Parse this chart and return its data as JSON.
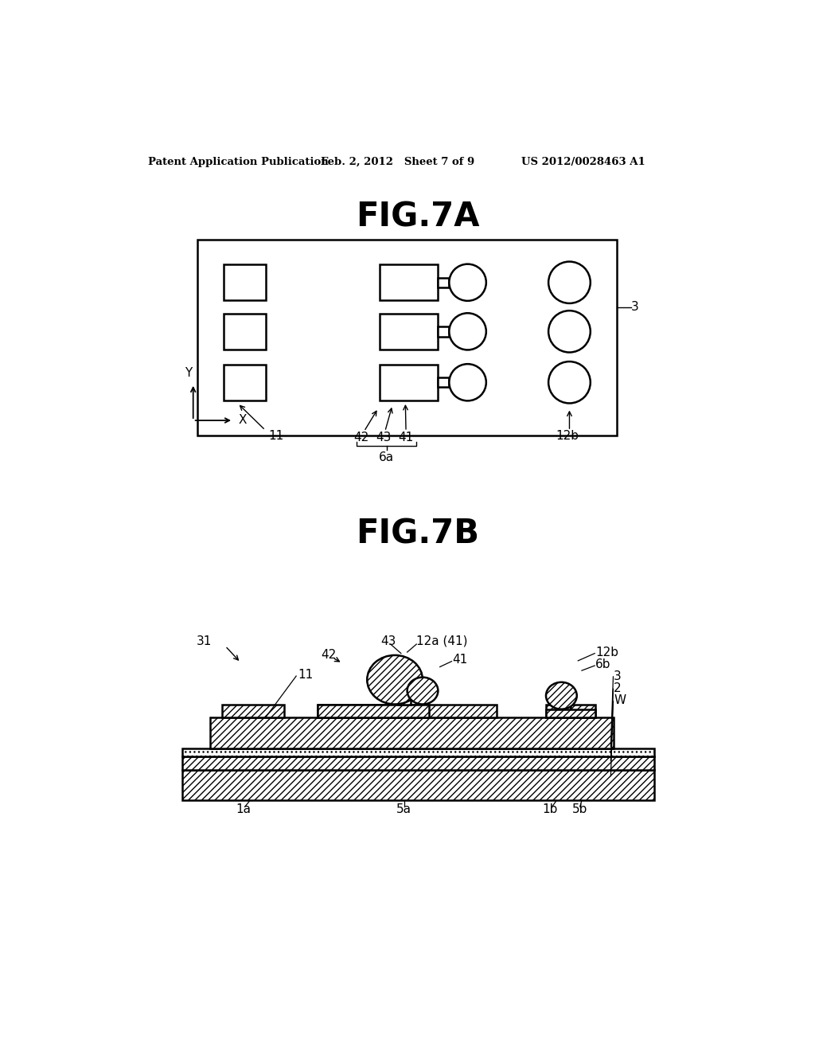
{
  "bg_color": "#ffffff",
  "header_left": "Patent Application Publication",
  "header_mid": "Feb. 2, 2012   Sheet 7 of 9",
  "header_right": "US 2012/0028463 A1",
  "fig7a_title": "FIG.7A",
  "fig7b_title": "FIG.7B"
}
